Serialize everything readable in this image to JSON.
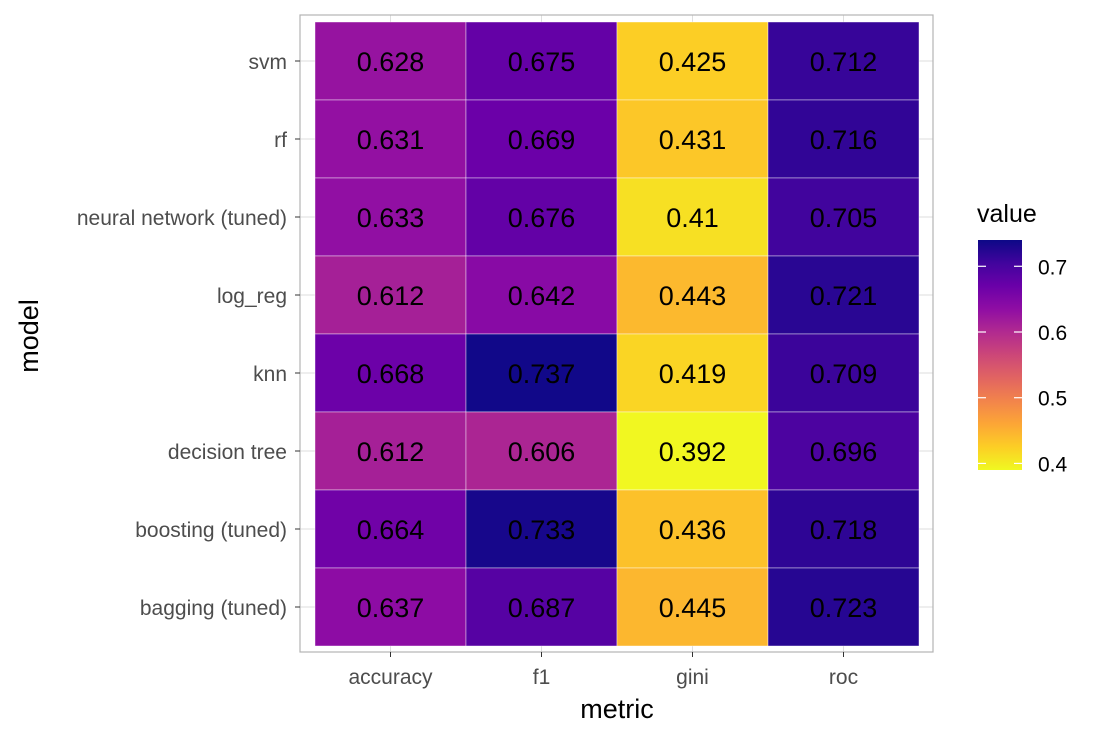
{
  "chart_data": {
    "type": "heatmap",
    "title": "",
    "xlabel": "metric",
    "ylabel": "model",
    "x_categories": [
      "accuracy",
      "f1",
      "gini",
      "roc"
    ],
    "y_categories": [
      "svm",
      "rf",
      "neural network (tuned)",
      "log_reg",
      "knn",
      "decision tree",
      "boosting (tuned)",
      "bagging (tuned)"
    ],
    "values": [
      [
        "0.628",
        "0.675",
        "0.425",
        "0.712"
      ],
      [
        "0.631",
        "0.669",
        "0.431",
        "0.716"
      ],
      [
        "0.633",
        "0.676",
        "0.41",
        "0.705"
      ],
      [
        "0.612",
        "0.642",
        "0.443",
        "0.721"
      ],
      [
        "0.668",
        "0.737",
        "0.419",
        "0.709"
      ],
      [
        "0.612",
        "0.606",
        "0.392",
        "0.696"
      ],
      [
        "0.664",
        "0.733",
        "0.436",
        "0.718"
      ],
      [
        "0.637",
        "0.687",
        "0.445",
        "0.723"
      ]
    ],
    "legend": {
      "title": "value",
      "ticks": [
        "0.4",
        "0.5",
        "0.6",
        "0.7"
      ],
      "colorscale": "plasma",
      "range": [
        0.39,
        0.74
      ],
      "placement": "right"
    },
    "grid": true
  }
}
